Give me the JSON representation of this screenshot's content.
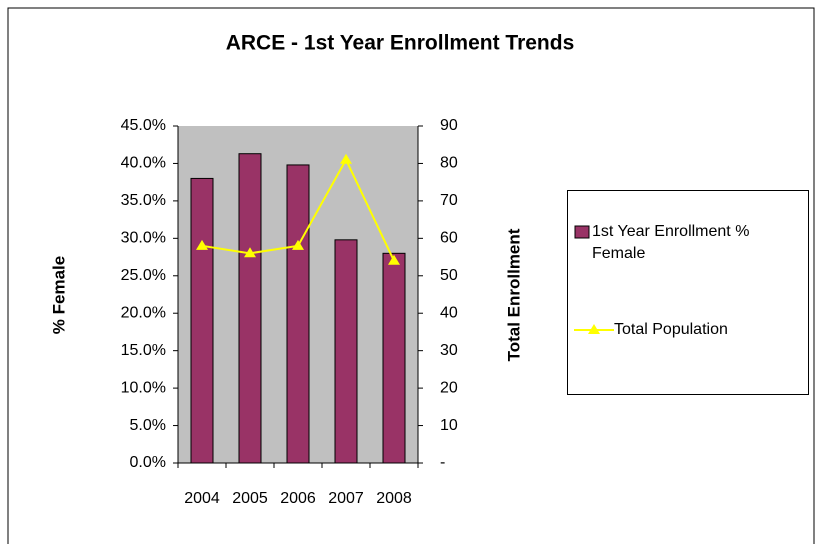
{
  "chart_data": {
    "type": "bar_line",
    "title": "ARCE - 1st Year Enrollment Trends",
    "categories": [
      "2004",
      "2005",
      "2006",
      "2007",
      "2008"
    ],
    "ylabel": "% Female",
    "y2label": "Total Enrollment",
    "series": [
      {
        "name": "1st Year Enrollment % Female",
        "type": "bar",
        "color": "#993366",
        "values": [
          38.0,
          41.3,
          39.8,
          29.8,
          28.0
        ]
      },
      {
        "name": "Total Population",
        "type": "line",
        "axis": "y2",
        "color": "#ffff00",
        "values": [
          58,
          56,
          58,
          81,
          54
        ]
      }
    ],
    "ylim": [
      0,
      45
    ],
    "yticks": [
      {
        "value": 0,
        "label": "0.0%"
      },
      {
        "value": 5,
        "label": "5.0%"
      },
      {
        "value": 10,
        "label": "10.0%"
      },
      {
        "value": 15,
        "label": "15.0%"
      },
      {
        "value": 20,
        "label": "20.0%"
      },
      {
        "value": 25,
        "label": "25.0%"
      },
      {
        "value": 30,
        "label": "30.0%"
      },
      {
        "value": 35,
        "label": "35.0%"
      },
      {
        "value": 40,
        "label": "40.0%"
      },
      {
        "value": 45,
        "label": "45.0%"
      }
    ],
    "y2lim": [
      0,
      90
    ],
    "y2ticks": [
      {
        "value": 0,
        "label": "-"
      },
      10,
      20,
      30,
      40,
      50,
      60,
      70,
      80,
      90
    ],
    "legend": "right",
    "plot_background": "#c0c0c0"
  }
}
